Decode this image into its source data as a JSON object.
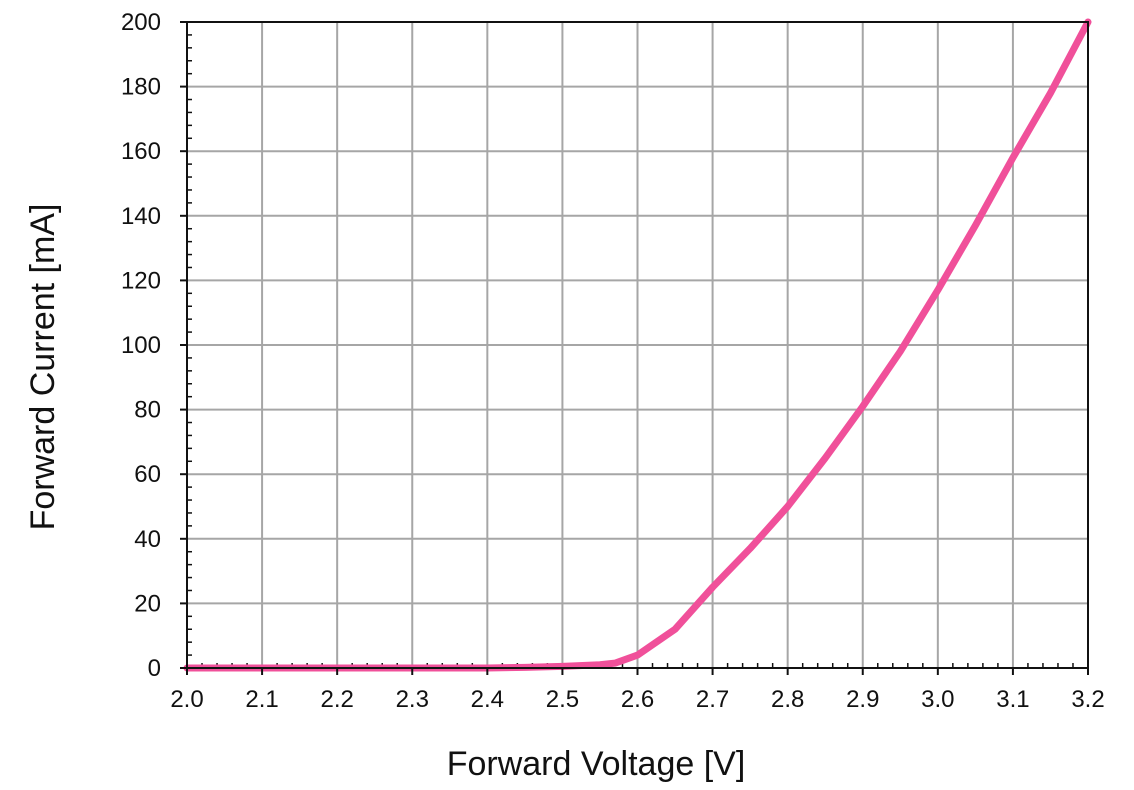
{
  "chart_data": {
    "type": "line",
    "title": "",
    "xlabel": "Forward Voltage [V]",
    "ylabel": "Forward Current [mA]",
    "xlim": [
      2.0,
      3.2
    ],
    "ylim": [
      0,
      200
    ],
    "grid": true,
    "x_ticks": [
      "2.0",
      "2.1",
      "2.2",
      "2.3",
      "2.4",
      "2.5",
      "2.6",
      "2.7",
      "2.8",
      "2.9",
      "3.0",
      "3.1",
      "3.2"
    ],
    "y_ticks": [
      "0",
      "20",
      "40",
      "60",
      "80",
      "100",
      "120",
      "140",
      "160",
      "180",
      "200"
    ],
    "series": [
      {
        "color": "#f0509a",
        "x": [
          2.0,
          2.1,
          2.2,
          2.3,
          2.4,
          2.45,
          2.5,
          2.55,
          2.57,
          2.6,
          2.65,
          2.7,
          2.75,
          2.8,
          2.85,
          2.9,
          2.95,
          3.0,
          3.05,
          3.1,
          3.15,
          3.2
        ],
        "y": [
          0,
          0,
          0,
          0,
          0,
          0.2,
          0.5,
          1,
          1.5,
          4,
          12,
          25,
          37,
          50,
          65,
          81,
          98,
          117,
          137,
          158,
          178,
          200
        ]
      }
    ]
  },
  "colors": {
    "grid": "#a6a6a6",
    "axis": "#111111",
    "series": "#f0509a"
  }
}
